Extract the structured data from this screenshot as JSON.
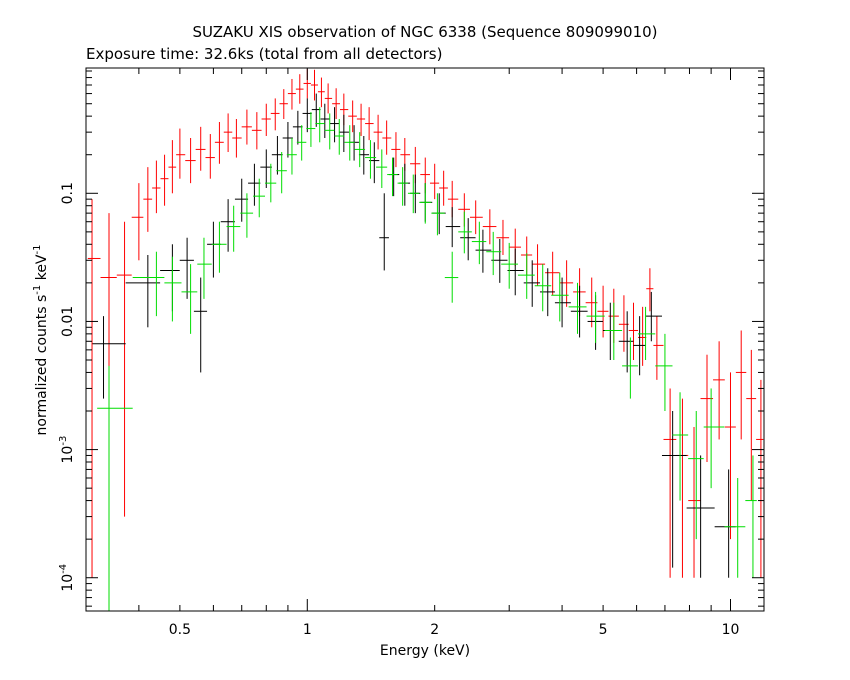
{
  "chart_data": {
    "type": "scatter",
    "title": "SUZAKU XIS observation of NGC 6338 (Sequence 809099010)",
    "subtitle": "Exposure time: 32.6ks (total from all detectors)",
    "xlabel": "Energy (keV)",
    "ylabel_main": "normalized counts s",
    "ylabel_exp1": "-1",
    "ylabel_mid": " keV",
    "ylabel_exp2": "-1",
    "x_scale": "log",
    "y_scale": "log",
    "xlim": [
      0.3,
      12.0
    ],
    "ylim": [
      5.5e-05,
      0.95
    ],
    "x_ticks": [
      {
        "value": 0.5,
        "label": "0.5"
      },
      {
        "value": 1,
        "label": "1"
      },
      {
        "value": 2,
        "label": "2"
      },
      {
        "value": 5,
        "label": "5"
      },
      {
        "value": 10,
        "label": "10"
      }
    ],
    "y_ticks": [
      {
        "value": 0.0001,
        "base": "10",
        "exp": "-4"
      },
      {
        "value": 0.001,
        "base": "10",
        "exp": "-3"
      },
      {
        "value": 0.01,
        "label": "0.01"
      },
      {
        "value": 0.1,
        "label": "0.1"
      }
    ],
    "grid": false,
    "legend": "none",
    "series": [
      {
        "color": "#ff0000",
        "points": [
          [
            0.31,
            0.031,
            0.0001,
            0.09
          ],
          [
            0.34,
            0.022,
            0.0001,
            0.07
          ],
          [
            0.37,
            0.023,
            0.0003,
            0.06
          ],
          [
            0.4,
            0.065,
            0.03,
            0.12
          ],
          [
            0.42,
            0.09,
            0.05,
            0.16
          ],
          [
            0.44,
            0.11,
            0.07,
            0.18
          ],
          [
            0.46,
            0.13,
            0.08,
            0.2
          ],
          [
            0.48,
            0.16,
            0.1,
            0.26
          ],
          [
            0.5,
            0.2,
            0.13,
            0.32
          ],
          [
            0.53,
            0.18,
            0.12,
            0.27
          ],
          [
            0.56,
            0.22,
            0.15,
            0.33
          ],
          [
            0.59,
            0.19,
            0.13,
            0.29
          ],
          [
            0.62,
            0.25,
            0.17,
            0.36
          ],
          [
            0.65,
            0.3,
            0.21,
            0.42
          ],
          [
            0.68,
            0.27,
            0.19,
            0.38
          ],
          [
            0.72,
            0.33,
            0.24,
            0.45
          ],
          [
            0.76,
            0.31,
            0.22,
            0.43
          ],
          [
            0.8,
            0.38,
            0.28,
            0.5
          ],
          [
            0.84,
            0.42,
            0.31,
            0.55
          ],
          [
            0.88,
            0.5,
            0.38,
            0.65
          ],
          [
            0.92,
            0.6,
            0.45,
            0.78
          ],
          [
            0.96,
            0.65,
            0.5,
            0.85
          ],
          [
            1.0,
            0.72,
            0.55,
            0.93
          ],
          [
            1.04,
            0.7,
            0.53,
            0.92
          ],
          [
            1.08,
            0.62,
            0.47,
            0.8
          ],
          [
            1.12,
            0.55,
            0.42,
            0.72
          ],
          [
            1.17,
            0.5,
            0.38,
            0.66
          ],
          [
            1.22,
            0.45,
            0.34,
            0.6
          ],
          [
            1.28,
            0.4,
            0.3,
            0.53
          ],
          [
            1.34,
            0.38,
            0.28,
            0.5
          ],
          [
            1.4,
            0.35,
            0.26,
            0.47
          ],
          [
            1.47,
            0.3,
            0.22,
            0.41
          ],
          [
            1.54,
            0.27,
            0.2,
            0.37
          ],
          [
            1.62,
            0.22,
            0.16,
            0.3
          ],
          [
            1.7,
            0.2,
            0.15,
            0.27
          ],
          [
            1.8,
            0.17,
            0.12,
            0.23
          ],
          [
            1.9,
            0.14,
            0.1,
            0.19
          ],
          [
            2.0,
            0.12,
            0.09,
            0.17
          ],
          [
            2.1,
            0.11,
            0.08,
            0.15
          ],
          [
            2.2,
            0.09,
            0.065,
            0.125
          ],
          [
            2.35,
            0.075,
            0.055,
            0.1
          ],
          [
            2.5,
            0.065,
            0.048,
            0.088
          ],
          [
            2.7,
            0.055,
            0.04,
            0.075
          ],
          [
            2.9,
            0.045,
            0.033,
            0.062
          ],
          [
            3.1,
            0.038,
            0.027,
            0.053
          ],
          [
            3.3,
            0.033,
            0.023,
            0.046
          ],
          [
            3.5,
            0.028,
            0.019,
            0.04
          ],
          [
            3.8,
            0.024,
            0.016,
            0.035
          ],
          [
            4.1,
            0.02,
            0.013,
            0.03
          ],
          [
            4.4,
            0.017,
            0.011,
            0.026
          ],
          [
            4.7,
            0.014,
            0.009,
            0.022
          ],
          [
            5.0,
            0.012,
            0.0075,
            0.019
          ],
          [
            5.3,
            0.011,
            0.0068,
            0.018
          ],
          [
            5.6,
            0.0095,
            0.0058,
            0.016
          ],
          [
            5.9,
            0.0085,
            0.005,
            0.014
          ],
          [
            6.2,
            0.0075,
            0.0045,
            0.013
          ],
          [
            6.45,
            0.018,
            0.012,
            0.026
          ],
          [
            6.7,
            0.0065,
            0.0035,
            0.011
          ],
          [
            7.2,
            0.0012,
            0.0001,
            0.003
          ],
          [
            7.7,
            0.0009,
            0.0001,
            0.0025
          ],
          [
            8.2,
            0.0004,
            0.0001,
            0.0015
          ],
          [
            8.8,
            0.0025,
            0.0008,
            0.0055
          ],
          [
            9.4,
            0.0035,
            0.0012,
            0.007
          ],
          [
            10.0,
            0.0015,
            0.0002,
            0.004
          ],
          [
            10.6,
            0.004,
            0.0012,
            0.0085
          ],
          [
            11.2,
            0.0025,
            0.0004,
            0.006
          ],
          [
            11.8,
            0.0012,
            0.0001,
            0.0035
          ]
        ]
      },
      {
        "color": "#000000",
        "points": [
          [
            0.33,
            0.0067,
            0.0025,
            0.011
          ],
          [
            0.42,
            0.02,
            0.009,
            0.033
          ],
          [
            0.48,
            0.025,
            0.012,
            0.04
          ],
          [
            0.52,
            0.03,
            0.015,
            0.045
          ],
          [
            0.56,
            0.012,
            0.004,
            0.022
          ],
          [
            0.6,
            0.04,
            0.022,
            0.06
          ],
          [
            0.65,
            0.06,
            0.035,
            0.09
          ],
          [
            0.7,
            0.09,
            0.06,
            0.13
          ],
          [
            0.75,
            0.12,
            0.08,
            0.17
          ],
          [
            0.8,
            0.16,
            0.11,
            0.22
          ],
          [
            0.85,
            0.2,
            0.14,
            0.28
          ],
          [
            0.9,
            0.27,
            0.19,
            0.36
          ],
          [
            0.95,
            0.33,
            0.24,
            0.44
          ],
          [
            1.0,
            0.42,
            0.3,
            0.55
          ],
          [
            1.05,
            0.45,
            0.33,
            0.6
          ],
          [
            1.1,
            0.38,
            0.27,
            0.5
          ],
          [
            1.16,
            0.35,
            0.25,
            0.47
          ],
          [
            1.22,
            0.3,
            0.21,
            0.41
          ],
          [
            1.29,
            0.25,
            0.18,
            0.34
          ],
          [
            1.36,
            0.2,
            0.14,
            0.28
          ],
          [
            1.44,
            0.18,
            0.12,
            0.25
          ],
          [
            1.52,
            0.045,
            0.025,
            0.1
          ],
          [
            1.6,
            0.14,
            0.095,
            0.19
          ],
          [
            1.7,
            0.12,
            0.08,
            0.17
          ],
          [
            1.8,
            0.1,
            0.07,
            0.14
          ],
          [
            1.9,
            0.085,
            0.06,
            0.12
          ],
          [
            2.05,
            0.07,
            0.048,
            0.1
          ],
          [
            2.2,
            0.055,
            0.038,
            0.078
          ],
          [
            2.4,
            0.045,
            0.03,
            0.064
          ],
          [
            2.6,
            0.036,
            0.024,
            0.052
          ],
          [
            2.85,
            0.03,
            0.02,
            0.044
          ],
          [
            3.1,
            0.025,
            0.016,
            0.037
          ],
          [
            3.4,
            0.02,
            0.013,
            0.03
          ],
          [
            3.7,
            0.017,
            0.011,
            0.026
          ],
          [
            4.0,
            0.014,
            0.009,
            0.022
          ],
          [
            4.4,
            0.012,
            0.0075,
            0.019
          ],
          [
            4.8,
            0.01,
            0.006,
            0.016
          ],
          [
            5.2,
            0.0085,
            0.005,
            0.014
          ],
          [
            5.7,
            0.007,
            0.004,
            0.012
          ],
          [
            6.1,
            0.0065,
            0.0038,
            0.011
          ],
          [
            6.5,
            0.011,
            0.007,
            0.017
          ],
          [
            7.3,
            0.0009,
            0.00012,
            0.002
          ],
          [
            8.5,
            0.00035,
            0.0001,
            0.0009
          ],
          [
            9.9,
            0.00025,
            0.0001,
            0.0007
          ]
        ]
      },
      {
        "color": "#00dd00",
        "points": [
          [
            0.34,
            0.0021,
            5e-05,
            0.0045
          ],
          [
            0.44,
            0.022,
            0.011,
            0.035
          ],
          [
            0.48,
            0.02,
            0.01,
            0.032
          ],
          [
            0.53,
            0.017,
            0.008,
            0.028
          ],
          [
            0.57,
            0.028,
            0.015,
            0.045
          ],
          [
            0.62,
            0.04,
            0.024,
            0.06
          ],
          [
            0.67,
            0.055,
            0.035,
            0.08
          ],
          [
            0.72,
            0.07,
            0.045,
            0.1
          ],
          [
            0.77,
            0.095,
            0.065,
            0.13
          ],
          [
            0.82,
            0.12,
            0.085,
            0.17
          ],
          [
            0.87,
            0.15,
            0.1,
            0.21
          ],
          [
            0.92,
            0.2,
            0.14,
            0.27
          ],
          [
            0.97,
            0.25,
            0.18,
            0.34
          ],
          [
            1.02,
            0.32,
            0.23,
            0.43
          ],
          [
            1.07,
            0.35,
            0.25,
            0.47
          ],
          [
            1.13,
            0.31,
            0.22,
            0.42
          ],
          [
            1.19,
            0.28,
            0.2,
            0.38
          ],
          [
            1.26,
            0.25,
            0.18,
            0.34
          ],
          [
            1.33,
            0.22,
            0.16,
            0.3
          ],
          [
            1.41,
            0.19,
            0.13,
            0.26
          ],
          [
            1.5,
            0.16,
            0.11,
            0.22
          ],
          [
            1.59,
            0.14,
            0.095,
            0.19
          ],
          [
            1.68,
            0.12,
            0.08,
            0.16
          ],
          [
            1.78,
            0.1,
            0.07,
            0.14
          ],
          [
            1.9,
            0.085,
            0.058,
            0.12
          ],
          [
            2.03,
            0.07,
            0.047,
            0.1
          ],
          [
            2.2,
            0.022,
            0.014,
            0.035
          ],
          [
            2.35,
            0.05,
            0.034,
            0.072
          ],
          [
            2.55,
            0.042,
            0.028,
            0.06
          ],
          [
            2.75,
            0.035,
            0.023,
            0.05
          ],
          [
            3.0,
            0.028,
            0.018,
            0.041
          ],
          [
            3.3,
            0.023,
            0.015,
            0.034
          ],
          [
            3.6,
            0.019,
            0.012,
            0.028
          ],
          [
            3.95,
            0.016,
            0.01,
            0.024
          ],
          [
            4.35,
            0.013,
            0.008,
            0.02
          ],
          [
            4.8,
            0.011,
            0.0068,
            0.017
          ],
          [
            5.3,
            0.0085,
            0.005,
            0.014
          ],
          [
            5.8,
            0.0045,
            0.0025,
            0.0075
          ],
          [
            6.3,
            0.008,
            0.005,
            0.013
          ],
          [
            7.0,
            0.0045,
            0.002,
            0.008
          ],
          [
            7.6,
            0.0013,
            0.0004,
            0.0028
          ],
          [
            8.3,
            0.00085,
            0.0002,
            0.002
          ],
          [
            9.0,
            0.0015,
            0.0005,
            0.003
          ],
          [
            10.4,
            0.00025,
            0.0001,
            0.0006
          ],
          [
            11.3,
            0.0004,
            0.0001,
            0.0009
          ]
        ]
      }
    ]
  }
}
